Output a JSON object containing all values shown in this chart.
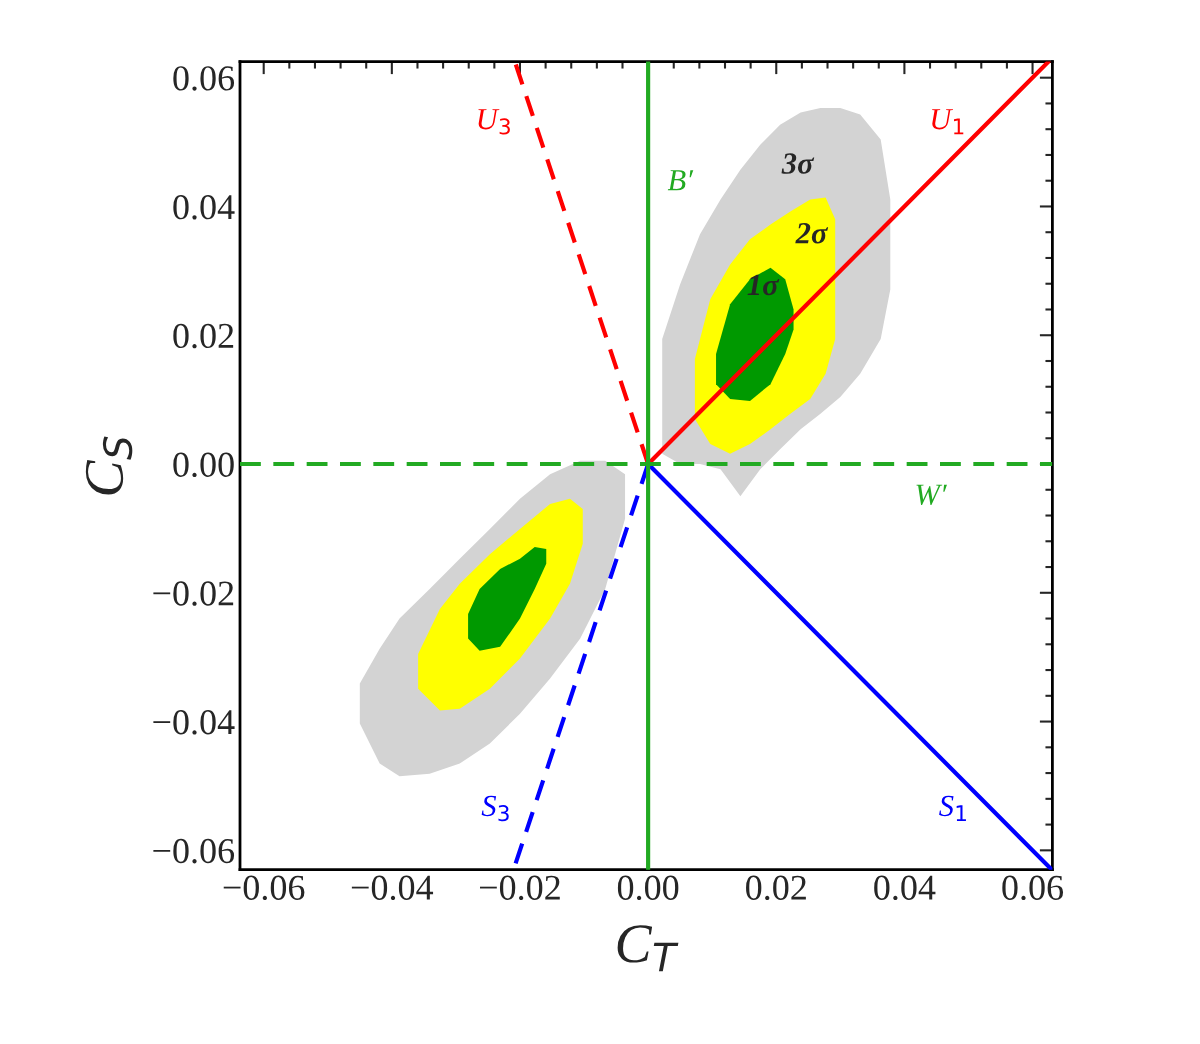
{
  "chart_data": {
    "type": "line",
    "xlabel": "C$_{T}$",
    "ylabel": "C$_{S}$",
    "xlim": [
      -0.0637,
      0.0631
    ],
    "ylim": [
      -0.063,
      0.0625
    ],
    "xticks": [
      {
        "value": -0.06,
        "label": "−0.06"
      },
      {
        "value": -0.04,
        "label": "−0.04"
      },
      {
        "value": -0.02,
        "label": "−0.02"
      },
      {
        "value": 0,
        "label": "0.00"
      },
      {
        "value": 0.02,
        "label": "0.02"
      },
      {
        "value": 0.04,
        "label": "0.04"
      },
      {
        "value": 0.06,
        "label": "0.06"
      }
    ],
    "yticks": [
      {
        "value": -0.06,
        "label": "−0.06"
      },
      {
        "value": -0.04,
        "label": "−0.04"
      },
      {
        "value": -0.02,
        "label": "−0.02"
      },
      {
        "value": 0,
        "label": "0.00"
      },
      {
        "value": 0.02,
        "label": "0.02"
      },
      {
        "value": 0.04,
        "label": "0.04"
      },
      {
        "value": 0.06,
        "label": "0.06"
      }
    ],
    "grid": false,
    "legend": false,
    "series": [
      {
        "type": "area",
        "color": "#d3d3d3",
        "x": [
          0.0022,
          0.005,
          0.0081,
          0.0113,
          0.0144,
          0.0175,
          0.0206,
          0.0238,
          0.0269,
          0.03,
          0.0331,
          0.0363,
          0.0378,
          0.0378,
          0.0363,
          0.0331,
          0.03,
          0.0269,
          0.0238,
          0.0206,
          0.0175,
          0.0144,
          0.0113,
          0.0081,
          0.005,
          0.0022
        ],
        "values": [
          0.0194,
          0.0279,
          0.0357,
          0.0411,
          0.0457,
          0.0496,
          0.0527,
          0.0546,
          0.0553,
          0.0553,
          0.0543,
          0.0504,
          0.0411,
          0.0271,
          0.0194,
          0.014,
          0.0104,
          0.0078,
          0.0054,
          0.0023,
          -0.0008,
          -0.005,
          -0.0008,
          0,
          0,
          0.0016
        ]
      },
      {
        "type": "area",
        "color": "#d3d3d3",
        "x": [
          -0.045,
          -0.0419,
          -0.0388,
          -0.0341,
          -0.0294,
          -0.0247,
          -0.02,
          -0.0153,
          -0.0106,
          -0.0067,
          -0.0036,
          -0.0036,
          -0.0067,
          -0.0106,
          -0.0153,
          -0.02,
          -0.0247,
          -0.0294,
          -0.0341,
          -0.0388,
          -0.0419,
          -0.045
        ],
        "values": [
          -0.0341,
          -0.0287,
          -0.024,
          -0.0194,
          -0.0147,
          -0.0101,
          -0.0054,
          -0.0016,
          0.0005,
          0.0005,
          -0.0016,
          -0.0085,
          -0.0194,
          -0.0271,
          -0.0333,
          -0.0388,
          -0.0434,
          -0.0465,
          -0.0481,
          -0.0485,
          -0.0465,
          -0.0403
        ]
      },
      {
        "type": "area",
        "color": "#ffff00",
        "x": [
          0.0073,
          0.0097,
          0.0128,
          0.0159,
          0.0191,
          0.0222,
          0.0253,
          0.0277,
          0.0292,
          0.0292,
          0.0277,
          0.0253,
          0.0222,
          0.0191,
          0.0159,
          0.0128,
          0.0097,
          0.0073
        ],
        "values": [
          0.0163,
          0.0256,
          0.031,
          0.0349,
          0.0372,
          0.0392,
          0.0411,
          0.0414,
          0.038,
          0.0194,
          0.014,
          0.0101,
          0.0078,
          0.0054,
          0.0031,
          0.0016,
          0.0031,
          0.007
        ]
      },
      {
        "type": "area",
        "color": "#ffff00",
        "x": [
          -0.0359,
          -0.0325,
          -0.0294,
          -0.0247,
          -0.02,
          -0.0153,
          -0.0122,
          -0.0102,
          -0.0102,
          -0.0122,
          -0.0153,
          -0.02,
          -0.0247,
          -0.0294,
          -0.0325,
          -0.0359
        ],
        "values": [
          -0.0295,
          -0.0225,
          -0.0186,
          -0.014,
          -0.0101,
          -0.0062,
          -0.0054,
          -0.007,
          -0.0124,
          -0.0186,
          -0.024,
          -0.0302,
          -0.0349,
          -0.038,
          -0.0383,
          -0.0349
        ]
      },
      {
        "type": "area",
        "color": "#009900",
        "x": [
          0.0106,
          0.0128,
          0.0159,
          0.0191,
          0.0214,
          0.0227,
          0.0227,
          0.0214,
          0.0191,
          0.0159,
          0.0128,
          0.0106
        ],
        "values": [
          0.0171,
          0.0248,
          0.0287,
          0.0305,
          0.0287,
          0.024,
          0.0209,
          0.0171,
          0.0124,
          0.0098,
          0.0101,
          0.0124
        ]
      },
      {
        "type": "area",
        "color": "#009900",
        "x": [
          -0.0281,
          -0.0263,
          -0.0231,
          -0.02,
          -0.0177,
          -0.0159,
          -0.0159,
          -0.0177,
          -0.02,
          -0.0231,
          -0.0263,
          -0.0281
        ],
        "values": [
          -0.0233,
          -0.0194,
          -0.0163,
          -0.0147,
          -0.0129,
          -0.0132,
          -0.0155,
          -0.0194,
          -0.024,
          -0.0284,
          -0.029,
          -0.0271
        ]
      },
      {
        "name": "U$_{3}$",
        "color": "#ff0000",
        "line_style": "dashed",
        "x": [
          0,
          -0.0208
        ],
        "values": [
          0,
          0.0625
        ]
      },
      {
        "name": "U$_{1}$",
        "color": "#ff0000",
        "line_style": "solid",
        "x": [
          0,
          0.0625
        ],
        "values": [
          0,
          0.0625
        ]
      },
      {
        "name": "S$_{3}$",
        "color": "#0000ff",
        "line_style": "dashed",
        "x": [
          0,
          -0.021
        ],
        "values": [
          0,
          -0.063
        ]
      },
      {
        "name": "S$_{1}$",
        "color": "#0000ff",
        "line_style": "solid",
        "x": [
          0,
          0.063
        ],
        "values": [
          0,
          -0.063
        ]
      },
      {
        "name": "B′",
        "color": "#22aa22",
        "line_style": "solid",
        "x": [
          0,
          0
        ],
        "values": [
          -0.063,
          0.0625
        ]
      },
      {
        "name": "W′",
        "color": "#22aa22",
        "line_style": "dashed",
        "x": [
          -0.0637,
          0.0631
        ],
        "values": [
          0,
          0
        ]
      }
    ],
    "annotations": [
      "3σ",
      "2σ",
      "1σ"
    ]
  }
}
